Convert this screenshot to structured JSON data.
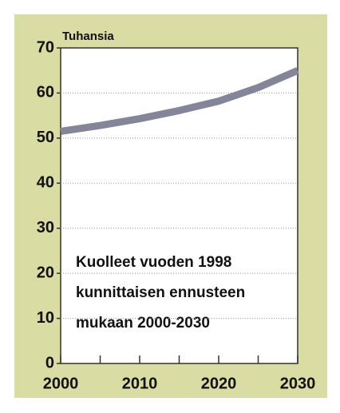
{
  "chart_data": {
    "type": "line",
    "y_label": "Tuhansia",
    "annotation": [
      "Kuolleet vuoden 1998",
      "kunnittaisen ennusteen",
      "mukaan 2000-2030"
    ],
    "x": [
      2000,
      2005,
      2010,
      2015,
      2020,
      2025,
      2030
    ],
    "values": [
      51.5,
      52.8,
      54.3,
      56.1,
      58.2,
      61.2,
      65
    ],
    "color": "#85859a",
    "xlim": [
      2000,
      2030
    ],
    "xticks": [
      2000,
      2010,
      2020,
      2030
    ],
    "xminorticks": [
      2005,
      2015,
      2025
    ],
    "ylim": [
      0,
      70
    ],
    "yticks": [
      0,
      10,
      20,
      30,
      40,
      50,
      60,
      70
    ],
    "grid": true
  }
}
